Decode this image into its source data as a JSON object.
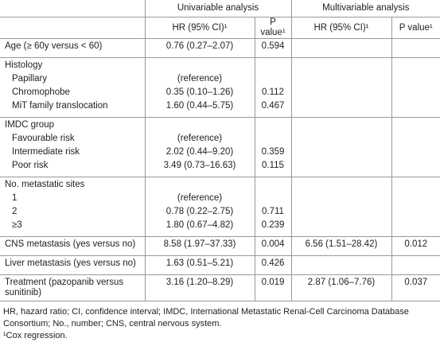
{
  "table": {
    "header": {
      "univariable": "Univariable analysis",
      "multivariable": "Multivariable analysis",
      "uni_hr": "HR (95% CI)¹",
      "uni_p": "P value¹",
      "multi_hr": "HR (95% CI)¹",
      "multi_p": "P value¹"
    },
    "groups": [
      {
        "rows": [
          {
            "label": "Age (≥ 60y versus < 60)",
            "uni_hr": "0.76 (0.27–2.07)",
            "uni_p": "0.594"
          }
        ]
      },
      {
        "rows": [
          {
            "label": "Histology"
          },
          {
            "label": "Papillary",
            "indent": true,
            "uni_hr": "(reference)"
          },
          {
            "label": "Chromophobe",
            "indent": true,
            "uni_hr": "0.35 (0.10–1.26)",
            "uni_p": "0.112"
          },
          {
            "label": "MiT family translocation",
            "indent": true,
            "uni_hr": "1.60 (0.44–5.75)",
            "uni_p": "0.467"
          }
        ]
      },
      {
        "rows": [
          {
            "label": "IMDC group"
          },
          {
            "label": "Favourable risk",
            "indent": true,
            "uni_hr": "(reference)"
          },
          {
            "label": "Intermediate risk",
            "indent": true,
            "uni_hr": "2.02 (0.44–9.20)",
            "uni_p": "0.359"
          },
          {
            "label": "Poor risk",
            "indent": true,
            "uni_hr": "3.49 (0.73–16.63)",
            "uni_p": "0.115"
          }
        ]
      },
      {
        "rows": [
          {
            "label": "No. metastatic sites"
          },
          {
            "label": "1",
            "indent": true,
            "uni_hr": "(reference)"
          },
          {
            "label": "2",
            "indent": true,
            "uni_hr": "0.78 (0.22–2.75)",
            "uni_p": "0.711"
          },
          {
            "label": "≥3",
            "indent": true,
            "uni_hr": "1.80 (0.67–4.82)",
            "uni_p": "0.239"
          }
        ]
      },
      {
        "rows": [
          {
            "label": "CNS metastasis (yes versus no)",
            "uni_hr": "8.58 (1.97–37.33)",
            "uni_p": "0.004",
            "multi_hr": "6.56 (1.51–28.42)",
            "multi_p": "0.012"
          }
        ]
      },
      {
        "rows": [
          {
            "label": "Liver metastasis (yes versus no)",
            "uni_hr": "1.63 (0.51–5.21)",
            "uni_p": "0.426"
          }
        ]
      },
      {
        "rows": [
          {
            "label": "Treatment (pazopanib versus sunitinib)",
            "uni_hr": "3.16 (1.20–8.29)",
            "uni_p": "0.019",
            "multi_hr": "2.87 (1.06–7.76)",
            "multi_p": "0.037"
          }
        ]
      }
    ]
  },
  "footnotes": [
    "HR, hazard ratio; CI, confidence interval; IMDC, International Metastatic Renal-Cell Carcinoma Database Consortium; No., number; CNS, central nervous system.",
    "¹Cox regression."
  ]
}
